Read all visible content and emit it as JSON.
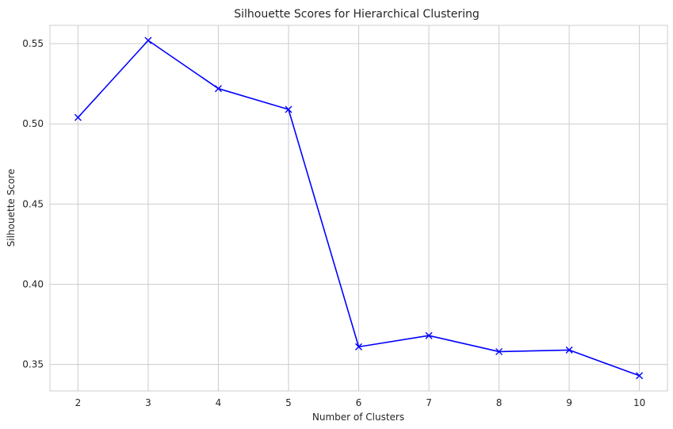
{
  "chart_data": {
    "type": "line",
    "title": "Silhouette Scores for Hierarchical Clustering",
    "xlabel": "Number of Clusters",
    "ylabel": "Silhouette Score",
    "x": [
      2,
      3,
      4,
      5,
      6,
      7,
      8,
      9,
      10
    ],
    "series": [
      {
        "values": [
          0.504,
          0.552,
          0.522,
          0.509,
          0.361,
          0.368,
          0.358,
          0.359,
          0.343
        ],
        "color": "#0000ff",
        "marker": "x"
      }
    ],
    "xticks": [
      "2",
      "3",
      "4",
      "5",
      "6",
      "7",
      "8",
      "9",
      "10"
    ],
    "yticks": [
      "0.35",
      "0.40",
      "0.45",
      "0.50",
      "0.55"
    ],
    "xlim": [
      1.6,
      10.4
    ],
    "ylim": [
      0.3335,
      0.5614
    ],
    "grid": true,
    "colors": {
      "grid": "#cccccc",
      "frame": "#cccccc",
      "line": "#0000ff",
      "text": "#262626"
    }
  }
}
